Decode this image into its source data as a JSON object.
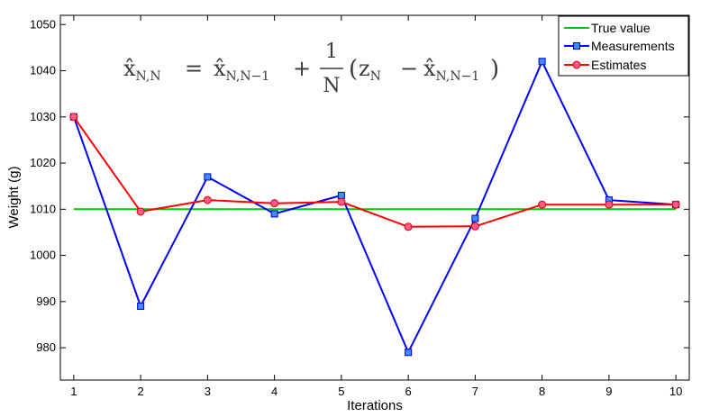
{
  "chart_data": {
    "type": "line",
    "title": "",
    "annotation": {
      "lhs_hat": "x̂",
      "lhs_sub": "N,N",
      "eq": "=",
      "rhs_hat": "x̂",
      "rhs_sub": "N,N−1",
      "plus": "+",
      "frac_num": "1",
      "frac_den": "N",
      "paren_open": "(",
      "z": "z",
      "z_sub": "N",
      "minus": "−",
      "hat2": "x̂",
      "hat2_sub": "N,N−1",
      "paren_close": ")"
    },
    "xlabel": "Iterations",
    "ylabel": "Weight (g)",
    "x": [
      1,
      2,
      3,
      4,
      5,
      6,
      7,
      8,
      9,
      10
    ],
    "xlim": [
      0.8,
      10.2
    ],
    "ylim": [
      973,
      1052
    ],
    "xticks": [
      "1",
      "2",
      "3",
      "4",
      "5",
      "6",
      "7",
      "8",
      "9",
      "10"
    ],
    "yticks": [
      "980",
      "990",
      "1000",
      "1010",
      "1020",
      "1030",
      "1040",
      "1050"
    ],
    "ytick_values": [
      980,
      990,
      1000,
      1010,
      1020,
      1030,
      1040,
      1050
    ],
    "grid": false,
    "legend_position": "top-right",
    "series": [
      {
        "name": "True value",
        "color": "#00cc00",
        "marker": "none",
        "values": [
          1010,
          1010,
          1010,
          1010,
          1010,
          1010,
          1010,
          1010,
          1010,
          1010
        ]
      },
      {
        "name": "Measurements",
        "color": "#0000ff",
        "marker": "square",
        "values": [
          1030,
          989,
          1017,
          1009,
          1013,
          979,
          1008,
          1042,
          1012,
          1011
        ]
      },
      {
        "name": "Estimates",
        "color": "#ff0000",
        "marker": "circle",
        "values": [
          1030,
          1009.5,
          1012,
          1011.3,
          1011.6,
          1006.2,
          1006.3,
          1011,
          1011,
          1011
        ]
      }
    ]
  }
}
